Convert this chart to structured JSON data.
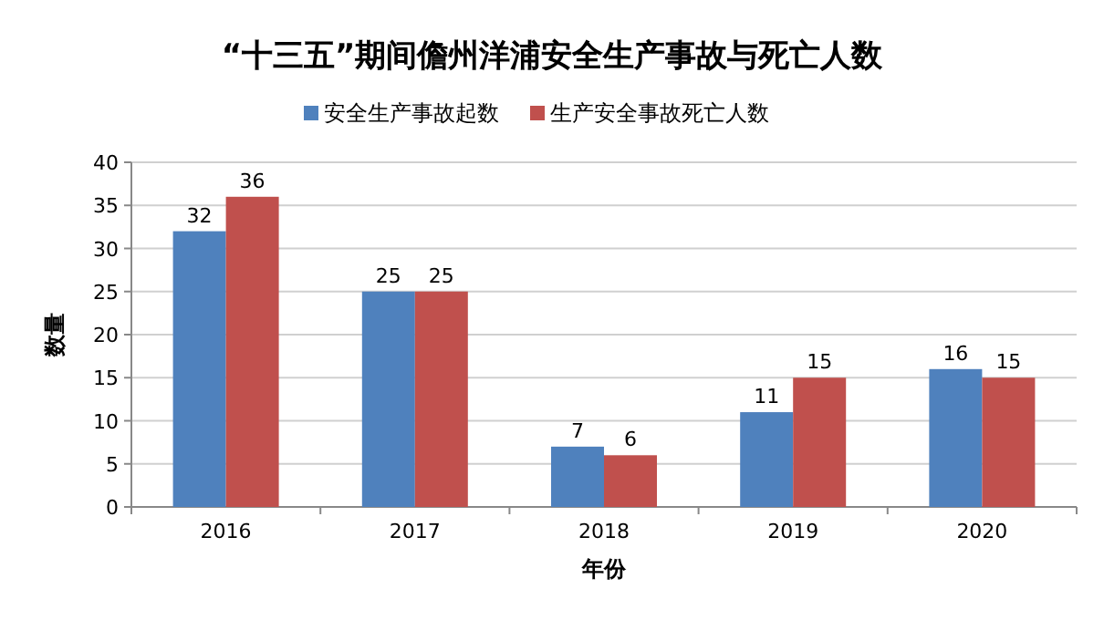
{
  "chart_data": {
    "type": "bar",
    "title": "“十三五”期间儋州洋浦安全生产事故与死亡人数",
    "xlabel": "年份",
    "ylabel": "数量",
    "categories": [
      "2016",
      "2017",
      "2018",
      "2019",
      "2020"
    ],
    "series": [
      {
        "name": "安全生产事故起数",
        "color": "#4f81bd",
        "values": [
          32,
          25,
          7,
          11,
          16
        ]
      },
      {
        "name": "生产安全事故死亡人数",
        "color": "#c0504d",
        "values": [
          36,
          25,
          6,
          15,
          15
        ]
      }
    ],
    "ylim": [
      0,
      40
    ],
    "yticks": [
      0,
      5,
      10,
      15,
      20,
      25,
      30,
      35,
      40
    ],
    "grid": "y",
    "legend": "top",
    "data_labels": true
  }
}
